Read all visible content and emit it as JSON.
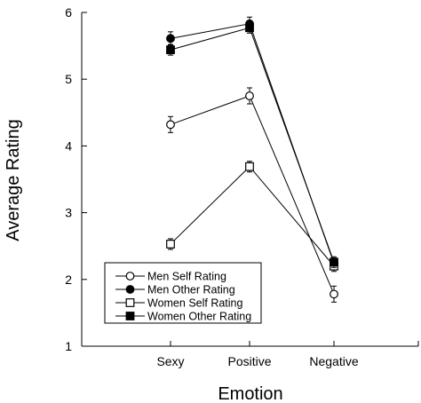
{
  "chart_data": {
    "type": "line",
    "xlabel": "Emotion",
    "ylabel": "Average Rating",
    "categories": [
      "Sexy",
      "Positive",
      "Negative"
    ],
    "ylim": [
      1,
      6
    ],
    "yticks": [
      1,
      2,
      3,
      4,
      5,
      6
    ],
    "grid": false,
    "legend_position": "lower-left",
    "series": [
      {
        "name": "Men Self Rating",
        "marker": "circle-open",
        "values": [
          4.32,
          4.75,
          1.78
        ],
        "errors": [
          0.12,
          0.12,
          0.12
        ]
      },
      {
        "name": "Men Other Rating",
        "marker": "circle-filled",
        "values": [
          5.61,
          5.83,
          2.24
        ],
        "errors": [
          0.1,
          0.1,
          0.08
        ]
      },
      {
        "name": "Women Self Rating",
        "marker": "square-open",
        "values": [
          2.53,
          3.69,
          2.2
        ],
        "errors": [
          0.08,
          0.08,
          0.08
        ]
      },
      {
        "name": "Women Other Rating",
        "marker": "square-filled",
        "values": [
          5.44,
          5.77,
          2.26
        ],
        "errors": [
          0.08,
          0.08,
          0.08
        ]
      }
    ]
  }
}
